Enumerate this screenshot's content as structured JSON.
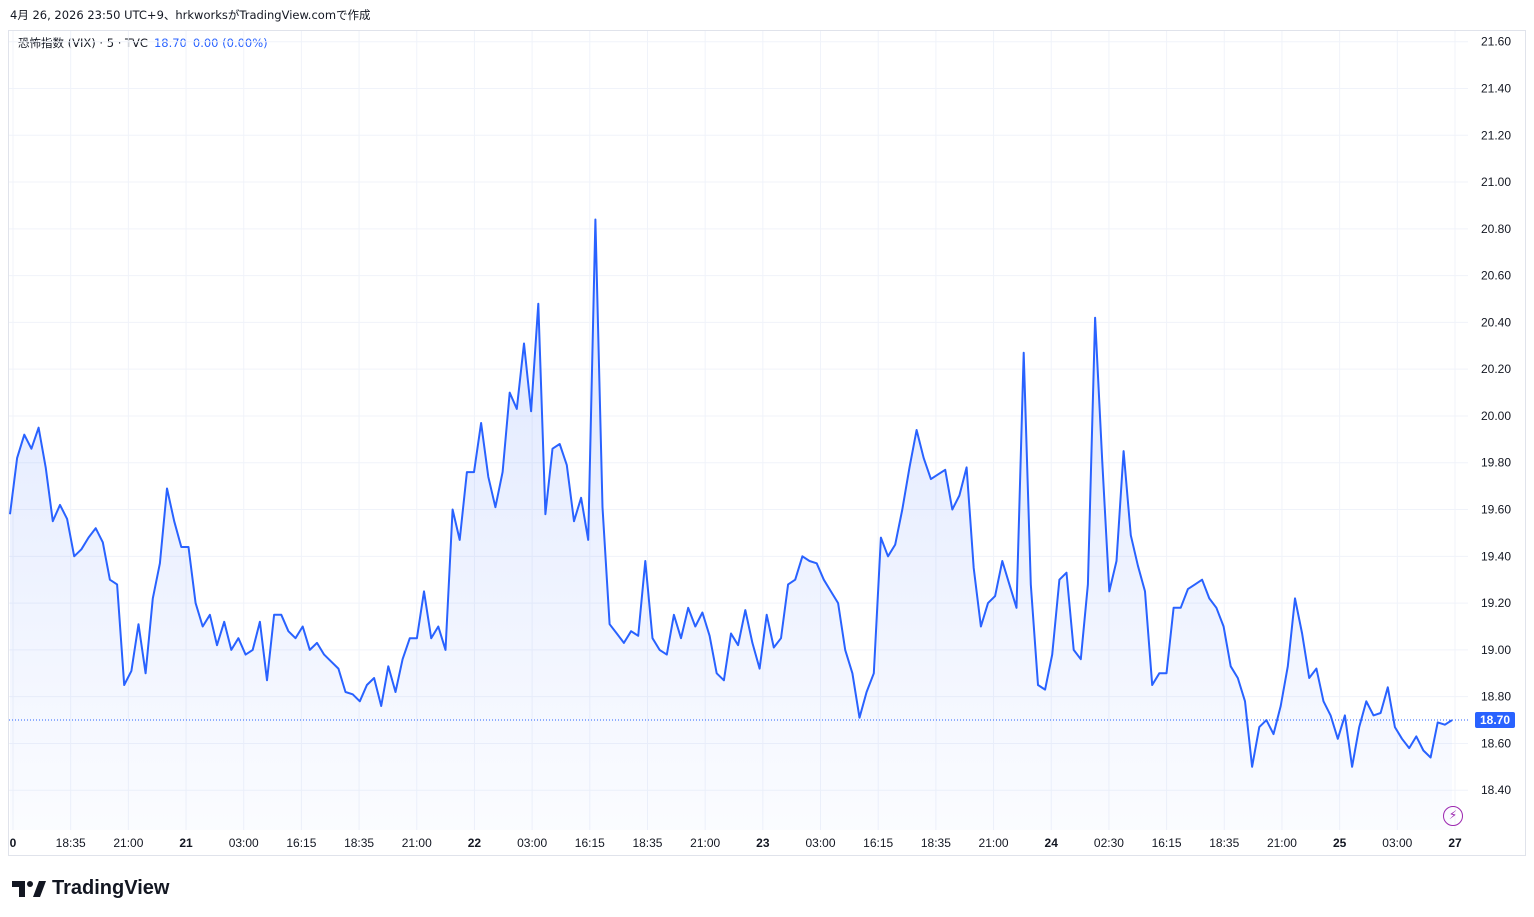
{
  "caption": "4月 26, 2026 23:50 UTC+9、hrkworksがTradingView.comで作成",
  "legend": {
    "symbol": "恐怖指数 (VIX) · 5 · TVC",
    "last": "18.70",
    "change": "0.00 (0.00%)"
  },
  "brand": "TradingView",
  "icons": {
    "brand_logo": "tradingview-logo-icon",
    "replay": "lightning-icon"
  },
  "colors": {
    "line": "#2962ff",
    "fill": "#2962ff",
    "grid": "#f0f3fa",
    "price_tag": "#2962ff"
  },
  "chart_data": {
    "type": "area",
    "x_ticks": [
      "0",
      "18:35",
      "21:00",
      "21",
      "03:00",
      "16:15",
      "18:35",
      "21:00",
      "22",
      "03:00",
      "16:15",
      "18:35",
      "21:00",
      "23",
      "03:00",
      "16:15",
      "18:35",
      "21:00",
      "24",
      "02:30",
      "16:15",
      "18:35",
      "21:00",
      "25",
      "03:00",
      "27"
    ],
    "y_ticks": [
      "21.60",
      "21.40",
      "21.20",
      "21.00",
      "20.80",
      "20.60",
      "20.40",
      "20.20",
      "20.00",
      "19.80",
      "19.60",
      "19.40",
      "19.20",
      "19.00",
      "18.80",
      "18.60",
      "18.40"
    ],
    "ylim": [
      18.23,
      21.65
    ],
    "last_value": 18.7,
    "last_label": "18.70",
    "series": [
      {
        "values": [
          19.58,
          19.82,
          19.92,
          19.86,
          19.95,
          19.78,
          19.55,
          19.62,
          19.56,
          19.4,
          19.43,
          19.48,
          19.52,
          19.46,
          19.3,
          19.28,
          18.85,
          18.91,
          19.11,
          18.9,
          19.22,
          19.37,
          19.69,
          19.55,
          19.44,
          19.44,
          19.2,
          19.1,
          19.15,
          19.02,
          19.12,
          19.0,
          19.05,
          18.98,
          19.0,
          19.12,
          18.87,
          19.15,
          19.15,
          19.08,
          19.05,
          19.1,
          19.0,
          19.03,
          18.98,
          18.95,
          18.92,
          18.82,
          18.81,
          18.78,
          18.85,
          18.88,
          18.76,
          18.93,
          18.82,
          18.96,
          19.05,
          19.05,
          19.25,
          19.05,
          19.1,
          19.0,
          19.6,
          19.47,
          19.76,
          19.76,
          19.97,
          19.74,
          19.61,
          19.76,
          20.1,
          20.03,
          20.31,
          20.02,
          20.48,
          19.58,
          19.86,
          19.88,
          19.79,
          19.55,
          19.65,
          19.47,
          20.84,
          19.61,
          19.11,
          19.07,
          19.03,
          19.08,
          19.06,
          19.38,
          19.05,
          19.0,
          18.98,
          19.15,
          19.05,
          19.18,
          19.1,
          19.16,
          19.06,
          18.9,
          18.87,
          19.07,
          19.02,
          19.17,
          19.03,
          18.92,
          19.15,
          19.01,
          19.05,
          19.28,
          19.3,
          19.4,
          19.38,
          19.37,
          19.3,
          19.25,
          19.2,
          19.0,
          18.9,
          18.71,
          18.82,
          18.9,
          19.48,
          19.4,
          19.45,
          19.6,
          19.78,
          19.94,
          19.82,
          19.73,
          19.75,
          19.77,
          19.6,
          19.66,
          19.78,
          19.35,
          19.1,
          19.2,
          19.23,
          19.38,
          19.28,
          19.18,
          20.27,
          19.28,
          18.85,
          18.83,
          18.98,
          19.3,
          19.33,
          19.0,
          18.96,
          19.28,
          20.42,
          19.81,
          19.25,
          19.38,
          19.85,
          19.49,
          19.36,
          19.25,
          18.85,
          18.9,
          18.9,
          19.18,
          19.18,
          19.26,
          19.28,
          19.3,
          19.22,
          19.18,
          19.1,
          18.93,
          18.88,
          18.78,
          18.5,
          18.67,
          18.7,
          18.64,
          18.76,
          18.93,
          19.22,
          19.07,
          18.88,
          18.92,
          18.78,
          18.72,
          18.62,
          18.72,
          18.5,
          18.67,
          18.78,
          18.72,
          18.73,
          18.84,
          18.67,
          18.62,
          18.58,
          18.63,
          18.57,
          18.54,
          18.69,
          18.68,
          18.7
        ]
      }
    ]
  }
}
